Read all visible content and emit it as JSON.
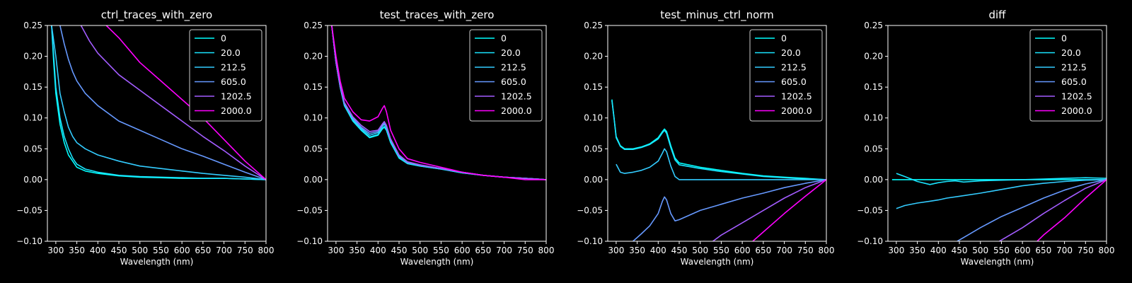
{
  "background": "#000000",
  "foreground": "#ffffff",
  "chart_data": [
    {
      "type": "line",
      "title": "ctrl_traces_with_zero",
      "xlabel": "Wavelength (nm)",
      "ylabel": "",
      "xlim": [
        280,
        800
      ],
      "ylim": [
        -0.1,
        0.25
      ],
      "xticks": [
        "300",
        "350",
        "400",
        "450",
        "500",
        "550",
        "600",
        "650",
        "700",
        "750",
        "800"
      ],
      "yticks": [
        "−0.10",
        "−0.05",
        "0.00",
        "0.05",
        "0.10",
        "0.15",
        "0.20",
        "0.25"
      ],
      "legend": "top-right",
      "series": [
        {
          "name": "0",
          "color": "#00ffff",
          "x": [
            290,
            295,
            300,
            310,
            320,
            330,
            340,
            350,
            370,
            400,
            450,
            500,
            550,
            600,
            650,
            700,
            750,
            800
          ],
          "y": [
            0.25,
            0.19,
            0.14,
            0.09,
            0.06,
            0.04,
            0.03,
            0.02,
            0.014,
            0.01,
            0.006,
            0.004,
            0.003,
            0.002,
            0.002,
            0.002,
            0.001,
            0.0
          ]
        },
        {
          "name": "20.0",
          "color": "#1ae5ff",
          "x": [
            290,
            295,
            300,
            310,
            320,
            330,
            340,
            350,
            370,
            400,
            450,
            500,
            550,
            600,
            650,
            700,
            750,
            800
          ],
          "y": [
            0.25,
            0.2,
            0.15,
            0.1,
            0.07,
            0.05,
            0.035,
            0.025,
            0.017,
            0.012,
            0.007,
            0.005,
            0.004,
            0.003,
            0.002,
            0.002,
            0.001,
            0.0
          ]
        },
        {
          "name": "212.5",
          "color": "#33ccff",
          "x": [
            290,
            300,
            310,
            320,
            330,
            340,
            350,
            370,
            400,
            450,
            500,
            550,
            600,
            650,
            700,
            750,
            800
          ],
          "y": [
            0.25,
            0.2,
            0.14,
            0.11,
            0.085,
            0.07,
            0.06,
            0.05,
            0.04,
            0.03,
            0.022,
            0.018,
            0.014,
            0.01,
            0.007,
            0.004,
            0.0
          ]
        },
        {
          "name": "605.0",
          "color": "#6699ff",
          "x": [
            310,
            320,
            330,
            340,
            350,
            370,
            400,
            450,
            500,
            550,
            600,
            650,
            700,
            750,
            800
          ],
          "y": [
            0.25,
            0.22,
            0.195,
            0.175,
            0.16,
            0.14,
            0.12,
            0.095,
            0.08,
            0.065,
            0.05,
            0.038,
            0.025,
            0.012,
            0.0
          ]
        },
        {
          "name": "1202.5",
          "color": "#a35cff",
          "x": [
            360,
            380,
            400,
            450,
            500,
            550,
            600,
            650,
            700,
            750,
            800
          ],
          "y": [
            0.25,
            0.225,
            0.205,
            0.17,
            0.145,
            0.12,
            0.095,
            0.07,
            0.047,
            0.022,
            0.0
          ]
        },
        {
          "name": "2000.0",
          "color": "#ff00ff",
          "x": [
            420,
            450,
            500,
            550,
            600,
            650,
            700,
            750,
            800
          ],
          "y": [
            0.25,
            0.23,
            0.19,
            0.16,
            0.13,
            0.1,
            0.065,
            0.03,
            0.0
          ]
        }
      ]
    },
    {
      "type": "line",
      "title": "test_traces_with_zero",
      "xlabel": "Wavelength (nm)",
      "ylabel": "",
      "xlim": [
        280,
        800
      ],
      "ylim": [
        -0.1,
        0.25
      ],
      "xticks": [
        "300",
        "350",
        "400",
        "450",
        "500",
        "550",
        "600",
        "650",
        "700",
        "750",
        "800"
      ],
      "yticks": [
        "−0.10",
        "−0.05",
        "0.00",
        "0.05",
        "0.10",
        "0.15",
        "0.20",
        "0.25"
      ],
      "legend": "top-right",
      "series": [
        {
          "name": "0",
          "color": "#00ffff",
          "x": [
            290,
            300,
            310,
            320,
            340,
            360,
            380,
            400,
            410,
            415,
            420,
            430,
            450,
            470,
            500,
            550,
            600,
            650,
            700,
            750,
            800
          ],
          "y": [
            0.25,
            0.19,
            0.15,
            0.12,
            0.095,
            0.08,
            0.068,
            0.072,
            0.082,
            0.085,
            0.08,
            0.06,
            0.035,
            0.026,
            0.022,
            0.017,
            0.011,
            0.007,
            0.004,
            0.002,
            0.0
          ]
        },
        {
          "name": "20.0",
          "color": "#1ae5ff",
          "x": [
            290,
            300,
            310,
            320,
            340,
            360,
            380,
            400,
            410,
            415,
            420,
            430,
            450,
            470,
            500,
            550,
            600,
            650,
            700,
            750,
            800
          ],
          "y": [
            0.25,
            0.19,
            0.15,
            0.12,
            0.096,
            0.081,
            0.069,
            0.073,
            0.083,
            0.086,
            0.081,
            0.061,
            0.036,
            0.026,
            0.022,
            0.017,
            0.011,
            0.007,
            0.004,
            0.002,
            0.0
          ]
        },
        {
          "name": "212.5",
          "color": "#33ccff",
          "x": [
            290,
            300,
            310,
            320,
            340,
            360,
            380,
            400,
            410,
            415,
            420,
            430,
            450,
            470,
            500,
            550,
            600,
            650,
            700,
            750,
            800
          ],
          "y": [
            0.25,
            0.19,
            0.15,
            0.122,
            0.098,
            0.083,
            0.072,
            0.076,
            0.086,
            0.09,
            0.084,
            0.063,
            0.037,
            0.027,
            0.023,
            0.018,
            0.012,
            0.007,
            0.004,
            0.002,
            0.0
          ]
        },
        {
          "name": "605.0",
          "color": "#6699ff",
          "x": [
            290,
            300,
            310,
            320,
            340,
            360,
            380,
            400,
            410,
            415,
            420,
            430,
            450,
            470,
            500,
            550,
            600,
            650,
            700,
            750,
            800
          ],
          "y": [
            0.25,
            0.19,
            0.152,
            0.124,
            0.1,
            0.085,
            0.075,
            0.078,
            0.088,
            0.092,
            0.086,
            0.065,
            0.038,
            0.028,
            0.023,
            0.018,
            0.012,
            0.007,
            0.004,
            0.002,
            0.0
          ]
        },
        {
          "name": "1202.5",
          "color": "#a35cff",
          "x": [
            290,
            300,
            310,
            320,
            340,
            360,
            380,
            400,
            410,
            415,
            420,
            430,
            450,
            470,
            500,
            550,
            600,
            650,
            700,
            750,
            800
          ],
          "y": [
            0.25,
            0.19,
            0.152,
            0.125,
            0.102,
            0.088,
            0.078,
            0.08,
            0.09,
            0.094,
            0.088,
            0.066,
            0.04,
            0.029,
            0.024,
            0.018,
            0.012,
            0.007,
            0.004,
            0.002,
            0.0
          ]
        },
        {
          "name": "2000.0",
          "color": "#ff00ff",
          "x": [
            290,
            300,
            310,
            320,
            340,
            360,
            380,
            400,
            410,
            415,
            420,
            430,
            450,
            470,
            500,
            550,
            600,
            650,
            700,
            750,
            800
          ],
          "y": [
            0.25,
            0.2,
            0.16,
            0.132,
            0.11,
            0.097,
            0.095,
            0.102,
            0.115,
            0.12,
            0.11,
            0.08,
            0.05,
            0.034,
            0.028,
            0.02,
            0.012,
            0.007,
            0.004,
            0.0,
            0.0
          ]
        }
      ]
    },
    {
      "type": "line",
      "title": "test_minus_ctrl_norm",
      "xlabel": "Wavelength (nm)",
      "ylabel": "",
      "xlim": [
        280,
        800
      ],
      "ylim": [
        -0.1,
        0.25
      ],
      "xticks": [
        "300",
        "350",
        "400",
        "450",
        "500",
        "550",
        "600",
        "650",
        "700",
        "750",
        "800"
      ],
      "yticks": [
        "−0.10",
        "−0.05",
        "0.00",
        "0.05",
        "0.10",
        "0.15",
        "0.20",
        "0.25"
      ],
      "legend": "top-right",
      "series": [
        {
          "name": "0",
          "color": "#00ffff",
          "x": [
            290,
            295,
            300,
            310,
            320,
            340,
            360,
            380,
            400,
            410,
            415,
            420,
            430,
            440,
            450,
            500,
            550,
            600,
            650,
            700,
            750,
            800
          ],
          "y": [
            0.13,
            0.1,
            0.07,
            0.055,
            0.05,
            0.05,
            0.053,
            0.058,
            0.068,
            0.078,
            0.082,
            0.078,
            0.055,
            0.035,
            0.027,
            0.02,
            0.015,
            0.01,
            0.006,
            0.004,
            0.002,
            0.0
          ]
        },
        {
          "name": "20.0",
          "color": "#1ae5ff",
          "x": [
            290,
            295,
            300,
            310,
            320,
            340,
            360,
            380,
            400,
            410,
            415,
            420,
            430,
            440,
            450,
            500,
            550,
            600,
            650,
            700,
            750,
            800
          ],
          "y": [
            0.128,
            0.1,
            0.068,
            0.054,
            0.049,
            0.049,
            0.052,
            0.057,
            0.066,
            0.076,
            0.08,
            0.075,
            0.052,
            0.032,
            0.024,
            0.018,
            0.013,
            0.009,
            0.005,
            0.003,
            0.001,
            0.0
          ]
        },
        {
          "name": "212.5",
          "color": "#33ccff",
          "x": [
            300,
            310,
            320,
            340,
            360,
            380,
            400,
            410,
            415,
            420,
            430,
            440,
            450,
            500,
            550,
            600,
            650,
            700,
            750,
            800
          ],
          "y": [
            0.025,
            0.012,
            0.01,
            0.012,
            0.015,
            0.02,
            0.03,
            0.043,
            0.05,
            0.045,
            0.022,
            0.005,
            0.0,
            0.0,
            0.0,
            0.0,
            0.0,
            0.0,
            0.0,
            0.0
          ]
        },
        {
          "name": "605.0",
          "color": "#6699ff",
          "x": [
            340,
            360,
            380,
            400,
            410,
            415,
            420,
            430,
            440,
            450,
            500,
            550,
            600,
            650,
            700,
            750,
            800
          ],
          "y": [
            -0.1,
            -0.088,
            -0.075,
            -0.055,
            -0.035,
            -0.028,
            -0.033,
            -0.055,
            -0.067,
            -0.065,
            -0.05,
            -0.04,
            -0.03,
            -0.022,
            -0.013,
            -0.006,
            0.0
          ]
        },
        {
          "name": "1202.5",
          "color": "#a35cff",
          "x": [
            530,
            550,
            600,
            650,
            700,
            750,
            800
          ],
          "y": [
            -0.1,
            -0.09,
            -0.07,
            -0.05,
            -0.03,
            -0.013,
            0.0
          ]
        },
        {
          "name": "2000.0",
          "color": "#ff00ff",
          "x": [
            625,
            650,
            700,
            750,
            800
          ],
          "y": [
            -0.1,
            -0.085,
            -0.055,
            -0.027,
            0.0
          ]
        }
      ]
    },
    {
      "type": "line",
      "title": "diff",
      "xlabel": "Wavelength (nm)",
      "ylabel": "",
      "xlim": [
        280,
        800
      ],
      "ylim": [
        -0.1,
        0.25
      ],
      "xticks": [
        "300",
        "350",
        "400",
        "450",
        "500",
        "550",
        "600",
        "650",
        "700",
        "750",
        "800"
      ],
      "yticks": [
        "−0.10",
        "−0.05",
        "0.00",
        "0.05",
        "0.10",
        "0.15",
        "0.20",
        "0.25"
      ],
      "legend": "top-right",
      "series": [
        {
          "name": "0",
          "color": "#00ffff",
          "x": [
            290,
            800
          ],
          "y": [
            0.0,
            0.0
          ]
        },
        {
          "name": "20.0",
          "color": "#1ae5ff",
          "x": [
            300,
            320,
            350,
            380,
            400,
            420,
            440,
            460,
            500,
            550,
            600,
            650,
            700,
            750,
            800
          ],
          "y": [
            0.01,
            0.005,
            -0.003,
            -0.008,
            -0.005,
            -0.003,
            -0.002,
            -0.004,
            -0.002,
            -0.001,
            0.0,
            0.001,
            0.002,
            0.003,
            0.002
          ]
        },
        {
          "name": "212.5",
          "color": "#33ccff",
          "x": [
            300,
            320,
            350,
            380,
            400,
            420,
            450,
            500,
            550,
            600,
            650,
            700,
            750,
            800
          ],
          "y": [
            -0.047,
            -0.042,
            -0.038,
            -0.035,
            -0.033,
            -0.03,
            -0.027,
            -0.022,
            -0.016,
            -0.01,
            -0.006,
            -0.003,
            -0.001,
            0.0
          ]
        },
        {
          "name": "605.0",
          "color": "#6699ff",
          "x": [
            445,
            470,
            500,
            550,
            600,
            650,
            700,
            750,
            800
          ],
          "y": [
            -0.1,
            -0.09,
            -0.078,
            -0.06,
            -0.045,
            -0.03,
            -0.017,
            -0.007,
            0.0
          ]
        },
        {
          "name": "1202.5",
          "color": "#a35cff",
          "x": [
            545,
            570,
            600,
            650,
            700,
            750,
            800
          ],
          "y": [
            -0.1,
            -0.09,
            -0.078,
            -0.055,
            -0.034,
            -0.014,
            0.0
          ]
        },
        {
          "name": "2000.0",
          "color": "#ff00ff",
          "x": [
            635,
            650,
            700,
            750,
            800
          ],
          "y": [
            -0.1,
            -0.09,
            -0.062,
            -0.03,
            0.0
          ]
        }
      ]
    }
  ]
}
